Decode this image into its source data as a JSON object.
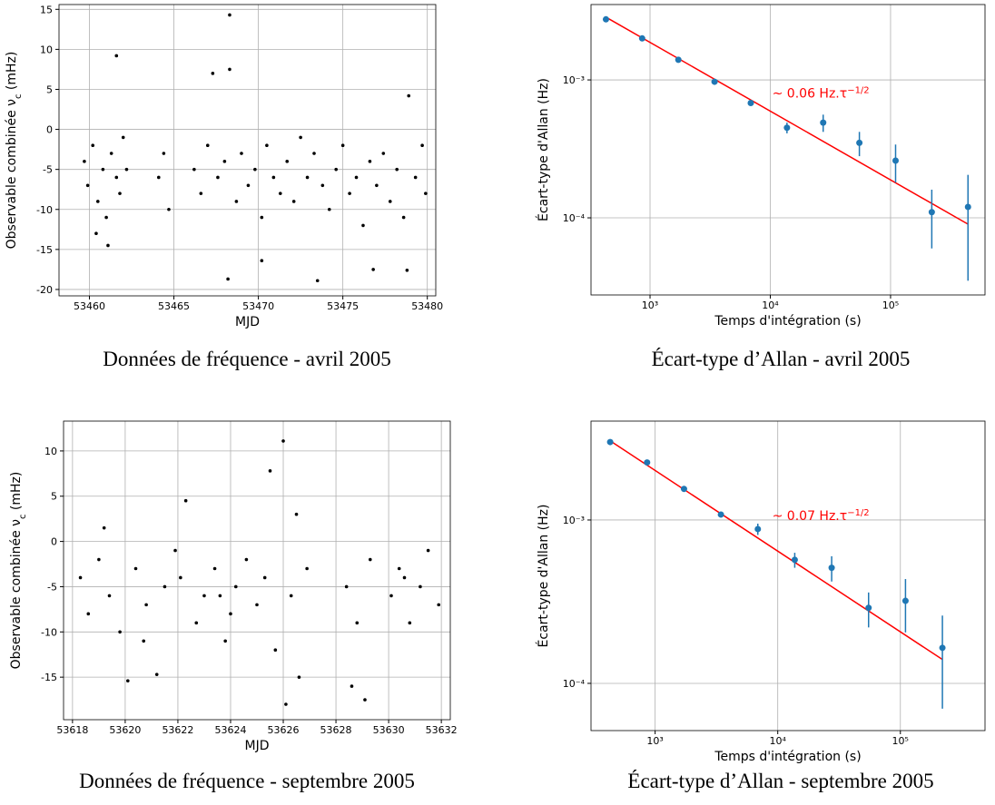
{
  "chart_data": [
    {
      "type": "scatter",
      "xlabel": "MJD",
      "ylabel": "Observable combinée ν",
      "ylabel_sub": "c",
      "ylabel_end": " (mHz)",
      "caption": "Données de fréquence - avril 2005",
      "grid": true,
      "xlim": [
        53458.2,
        53480.5
      ],
      "xticks": [
        53460,
        53465,
        53470,
        53475,
        53480
      ],
      "ylim": [
        -20.8,
        15.6
      ],
      "yticks": [
        -20,
        -15,
        -10,
        -5,
        0,
        5,
        10,
        15
      ],
      "series": [
        {
          "color": "#000000",
          "x": [
            53459.7,
            53459.9,
            53460.2,
            53460.5,
            53460.8,
            53461.0,
            53461.3,
            53461.6,
            53461.8,
            53462.0,
            53462.2,
            53460.4,
            53461.1,
            53461.6,
            53464.1,
            53464.4,
            53464.7,
            53466.2,
            53466.6,
            53467.0,
            53467.3,
            53467.6,
            53468.0,
            53468.3,
            53468.3,
            53468.2,
            53468.7,
            53469.0,
            53469.4,
            53469.8,
            53470.2,
            53470.5,
            53470.9,
            53471.3,
            53471.7,
            53472.1,
            53472.5,
            53472.9,
            53473.3,
            53473.5,
            53473.8,
            53474.2,
            53474.6,
            53475.0,
            53475.4,
            53475.8,
            53476.2,
            53476.6,
            53476.8,
            53477.0,
            53477.4,
            53477.8,
            53478.2,
            53478.6,
            53478.8,
            53478.9,
            53479.3,
            53479.7,
            53479.9,
            53470.2
          ],
          "values": [
            -4,
            -7,
            -2,
            -9,
            -5,
            -11,
            -3,
            -6,
            -8,
            -1,
            -5,
            -13,
            -14.5,
            9.2,
            -6,
            -3,
            -10,
            -5,
            -8,
            -2,
            7,
            -6,
            -4,
            14.3,
            7.5,
            -18.7,
            -9,
            -3,
            -7,
            -5,
            -11,
            -2,
            -6,
            -8,
            -4,
            -9,
            -1,
            -6,
            -3,
            -18.9,
            -7,
            -10,
            -5,
            -2,
            -8,
            -6,
            -12,
            -4,
            -17.5,
            -7,
            -3,
            -9,
            -5,
            -11,
            -17.6,
            4.2,
            -6,
            -2,
            -8,
            -16.4
          ]
        }
      ]
    },
    {
      "type": "errorbar",
      "xscale": "log",
      "yscale": "log",
      "xlabel": "Temps d'intégration (s)",
      "ylabel": "Écart-type d'Allan (Hz)",
      "caption": "Écart-type d’Allan - avril 2005",
      "grid": true,
      "annotation": "~  0.06 Hz.τ",
      "annotation_sup": "−1/2",
      "xlim": [
        323,
        610000
      ],
      "xticks": [
        {
          "value": 1000,
          "label": "10³"
        },
        {
          "value": 10000,
          "label": "10⁴"
        },
        {
          "value": 100000,
          "label": "10⁵"
        }
      ],
      "ylim": [
        2.76e-05,
        0.00352
      ],
      "yticks": [
        {
          "value": 0.0001,
          "label": "10⁻⁴"
        },
        {
          "value": 0.001,
          "label": "10⁻³"
        }
      ],
      "series": [
        {
          "color": "red",
          "line": true,
          "x": [
            430,
            440320
          ],
          "values": [
            0.00285,
            9e-05
          ]
        },
        {
          "color": "#1f77b4",
          "x": [
            430,
            860,
            1720,
            3440,
            6880,
            13760,
            27520,
            55040,
            110080,
            220160,
            440320
          ],
          "values": [
            0.00275,
            0.002,
            0.0014,
            0.00097,
            0.00068,
            0.00045,
            0.00049,
            0.00035,
            0.00026,
            0.00011,
            0.00012
          ],
          "err": [
            2e-05,
            2e-05,
            2e-05,
            2e-05,
            2.5e-05,
            4e-05,
            7e-05,
            7e-05,
            8e-05,
            5e-05,
            8.5e-05
          ]
        }
      ]
    },
    {
      "type": "scatter",
      "xlabel": "MJD",
      "ylabel": "Observable combinée ν",
      "ylabel_sub": "c",
      "ylabel_end": " (mHz)",
      "caption": "Données de fréquence - septembre 2005",
      "grid": true,
      "xlim": [
        53617.66,
        53632.34
      ],
      "xticks": [
        53618,
        53620,
        53622,
        53624,
        53626,
        53628,
        53630,
        53632
      ],
      "ylim": [
        -19.7,
        13.3
      ],
      "yticks": [
        -15,
        -10,
        -5,
        0,
        5,
        10
      ],
      "series": [
        {
          "color": "#000000",
          "x": [
            53618.3,
            53618.6,
            53619.0,
            53619.4,
            53619.8,
            53620.1,
            53620.4,
            53620.8,
            53621.2,
            53621.5,
            53621.9,
            53622.3,
            53622.7,
            53623.0,
            53623.4,
            53623.8,
            53624.2,
            53624.6,
            53625.0,
            53625.3,
            53625.5,
            53625.7,
            53626.0,
            53626.1,
            53626.3,
            53626.6,
            53626.9,
            53628.4,
            53628.6,
            53628.8,
            53629.1,
            53629.3,
            53630.1,
            53630.4,
            53630.8,
            53631.2,
            53631.5,
            53631.9,
            53619.2,
            53622.1,
            53624.0,
            53626.5,
            53620.7,
            53623.6,
            53630.6
          ],
          "values": [
            -4,
            -8,
            -2,
            -6,
            -10,
            -15.4,
            -3,
            -7,
            -14.7,
            -5,
            -1,
            4.5,
            -9,
            -6,
            -3,
            -11,
            -5,
            -2,
            -7,
            -4,
            7.8,
            -12,
            11.1,
            -18,
            -6,
            -15,
            -3,
            -5,
            -16,
            -9,
            -17.5,
            -2,
            -6,
            -3,
            -9,
            -5,
            -1,
            -7,
            1.5,
            -4,
            -8,
            3,
            -11,
            -6,
            -4
          ]
        }
      ]
    },
    {
      "type": "errorbar",
      "xscale": "log",
      "yscale": "log",
      "xlabel": "Temps d'intégration (s)",
      "ylabel": "Écart-type d'Allan (Hz)",
      "caption": "Écart-type d’Allan - septembre 2005",
      "grid": true,
      "annotation": "~  0.07 Hz.τ",
      "annotation_sup": "−1/2",
      "xlim": [
        300,
        490000
      ],
      "xticks": [
        {
          "value": 1000,
          "label": "10³"
        },
        {
          "value": 10000,
          "label": "10⁴"
        },
        {
          "value": 100000,
          "label": "10⁵"
        }
      ],
      "ylim": [
        5.14e-05,
        0.00403
      ],
      "yticks": [
        {
          "value": 0.0001,
          "label": "10⁻⁴"
        },
        {
          "value": 0.001,
          "label": "10⁻³"
        }
      ],
      "series": [
        {
          "color": "red",
          "line": true,
          "x": [
            430,
            220160
          ],
          "values": [
            0.00305,
            0.00014
          ]
        },
        {
          "color": "#1f77b4",
          "x": [
            430,
            860,
            1720,
            3440,
            6880,
            13760,
            27520,
            55040,
            110080,
            220160
          ],
          "values": [
            0.003,
            0.00225,
            0.00155,
            0.00108,
            0.00088,
            0.00057,
            0.00051,
            0.00029,
            0.00032,
            0.000165
          ],
          "err": [
            2e-05,
            2e-05,
            2e-05,
            3e-05,
            7e-05,
            6e-05,
            9e-05,
            7e-05,
            0.000115,
            9.5e-05
          ]
        }
      ]
    }
  ]
}
